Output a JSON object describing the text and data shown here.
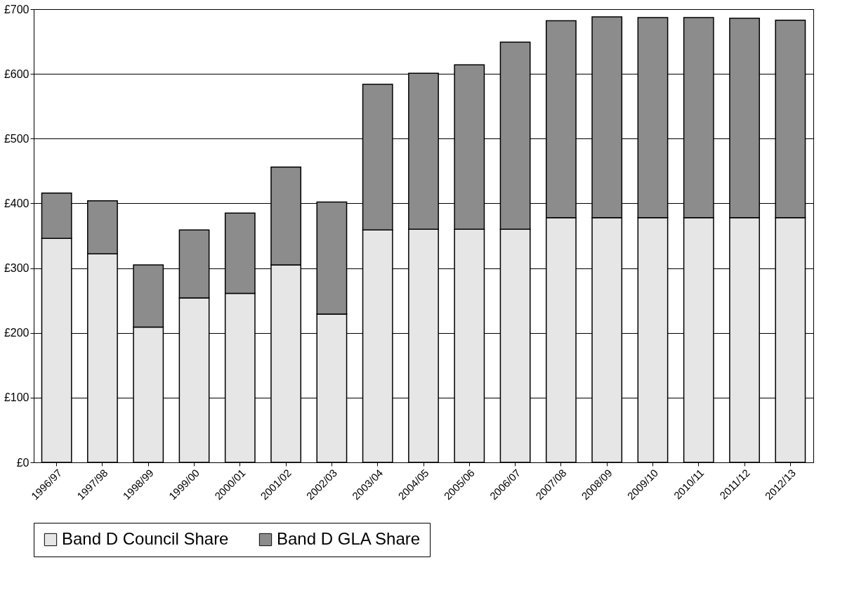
{
  "chart_data": {
    "type": "bar",
    "stacked": true,
    "categories": [
      "1996/97",
      "1997/98",
      "1998/99",
      "1999/00",
      "2000/01",
      "2001/02",
      "2002/03",
      "2003/04",
      "2004/05",
      "2005/06",
      "2006/07",
      "2007/08",
      "2008/09",
      "2009/10",
      "2010/11",
      "2011/12",
      "2012/13"
    ],
    "series": [
      {
        "name": "Band D Council Share",
        "color": "#e6e6e6",
        "values": [
          346,
          322,
          209,
          254,
          261,
          305,
          229,
          359,
          360,
          360,
          360,
          378,
          378,
          378,
          378,
          378,
          378
        ]
      },
      {
        "name": "Band D GLA Share",
        "color": "#8c8c8c",
        "values": [
          70,
          82,
          96,
          105,
          124,
          151,
          173,
          225,
          241,
          254,
          289,
          304,
          310,
          309,
          309,
          308,
          305
        ]
      }
    ],
    "ylim": [
      0,
      700
    ],
    "yticks": [
      {
        "value": 0,
        "label": "£0"
      },
      {
        "value": 100,
        "label": "£100"
      },
      {
        "value": 200,
        "label": "£200"
      },
      {
        "value": 300,
        "label": "£300"
      },
      {
        "value": 400,
        "label": "£400"
      },
      {
        "value": 500,
        "label": "£500"
      },
      {
        "value": 600,
        "label": "£600"
      },
      {
        "value": 700,
        "label": "£700"
      }
    ],
    "grid": "y",
    "legend": "bottom"
  }
}
